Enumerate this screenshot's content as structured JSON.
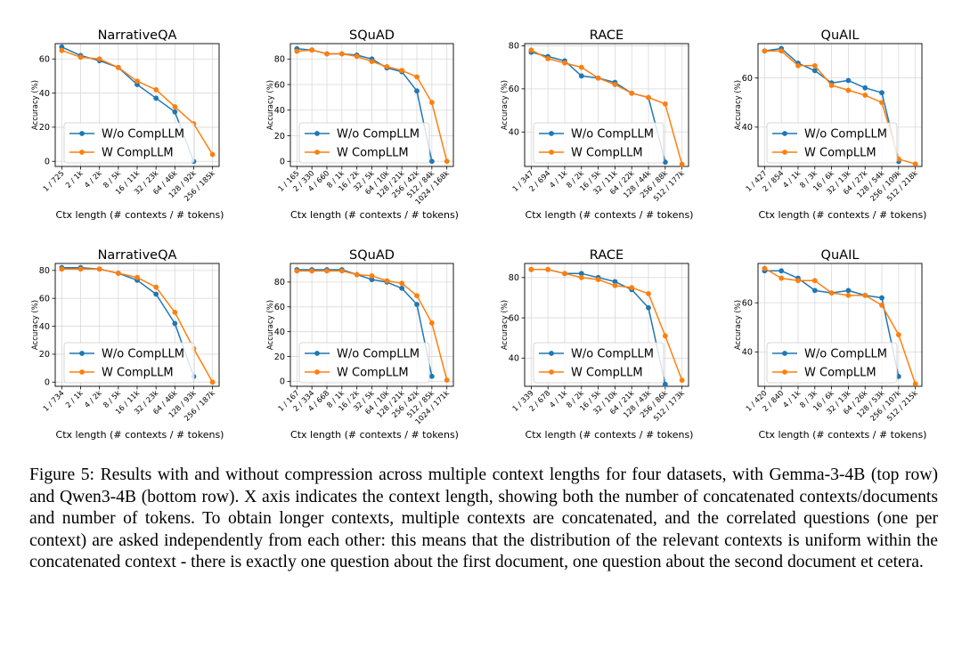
{
  "colors": {
    "series_a": "#1f77b4",
    "series_b": "#ff7f0e",
    "grid": "#d9d9d9",
    "axis": "#000000"
  },
  "legend_labels": [
    "W/o CompLLM",
    "W CompLLM"
  ],
  "caption": {
    "label": "Figure 5:",
    "text": "Results with and without compression across multiple context lengths for four datasets, with Gemma-3-4B (top row) and Qwen3-4B (bottom row). X axis indicates the context length, showing both the number of concatenated contexts/documents and number of tokens. To obtain longer contexts, multiple contexts are concatenated, and the correlated questions (one per context) are asked independently from each other: this means that the distribution of the relevant contexts is uniform within the concatenated context - there is exactly one question about the first document, one question about the second document et cetera."
  },
  "chart_data": [
    {
      "type": "line",
      "title": "NarrativeQA",
      "model": "Gemma-3-4B",
      "xlabel": "Ctx length (# contexts / # tokens)",
      "ylabel": "Accuracy (%)",
      "categories": [
        "1 / 725",
        "2 / 1k",
        "4 / 2k",
        "8 / 5k",
        "16 / 11k",
        "32 / 23k",
        "64 / 46k",
        "128 / 92k",
        "256 / 185k"
      ],
      "ylim": [
        -3,
        69
      ],
      "yticks": [
        0,
        20,
        40,
        60
      ],
      "series": [
        {
          "name": "W/o CompLLM",
          "values": [
            67,
            62,
            59,
            55,
            45,
            37,
            29,
            0,
            null
          ]
        },
        {
          "name": "W CompLLM",
          "values": [
            65,
            61,
            60,
            55,
            47,
            42,
            32,
            22,
            4
          ]
        }
      ]
    },
    {
      "type": "line",
      "title": "SQuAD",
      "model": "Gemma-3-4B",
      "xlabel": "Ctx length (# contexts / # tokens)",
      "ylabel": "Accuracy (%)",
      "categories": [
        "1 / 165",
        "2 / 330",
        "4 / 660",
        "8 / 1k",
        "16 / 2k",
        "32 / 5k",
        "64 / 10k",
        "128 / 21k",
        "256 / 42k",
        "512 / 84k",
        "1024 / 168k"
      ],
      "ylim": [
        -4,
        92
      ],
      "yticks": [
        0,
        20,
        40,
        60,
        80
      ],
      "series": [
        {
          "name": "W/o CompLLM",
          "values": [
            88,
            87,
            84,
            84,
            83,
            80,
            73,
            70,
            55,
            0,
            null
          ]
        },
        {
          "name": "W CompLLM",
          "values": [
            86,
            87,
            84,
            84,
            82,
            78,
            74,
            71,
            66,
            46,
            0
          ]
        }
      ]
    },
    {
      "type": "line",
      "title": "RACE",
      "model": "Gemma-3-4B",
      "xlabel": "Ctx length (# contexts / # tokens)",
      "ylabel": "Accuracy (%)",
      "categories": [
        "1 / 347",
        "2 / 694",
        "4 / 1k",
        "8 / 2k",
        "16 / 5k",
        "32 / 11k",
        "64 / 22k",
        "128 / 44k",
        "256 / 88k",
        "512 / 177k"
      ],
      "ylim": [
        24,
        81
      ],
      "yticks": [
        40,
        60,
        80
      ],
      "series": [
        {
          "name": "W/o CompLLM",
          "values": [
            77,
            75,
            73,
            66,
            65,
            63,
            58,
            56,
            26,
            null
          ]
        },
        {
          "name": "W CompLLM",
          "values": [
            78,
            74,
            72,
            70,
            65,
            62,
            58,
            56,
            53,
            25
          ]
        }
      ]
    },
    {
      "type": "line",
      "title": "QuAIL",
      "model": "Gemma-3-4B",
      "xlabel": "Ctx length (# contexts / # tokens)",
      "ylabel": "Accuracy (%)",
      "categories": [
        "1 / 427",
        "2 / 854",
        "4 / 1k",
        "8 / 3k",
        "16 / 6k",
        "32 / 13k",
        "64 / 27k",
        "128 / 54k",
        "256 / 109k",
        "512 / 218k"
      ],
      "ylim": [
        24,
        74
      ],
      "yticks": [
        40,
        60
      ],
      "series": [
        {
          "name": "W/o CompLLM",
          "values": [
            71,
            72,
            66,
            63,
            58,
            59,
            56,
            54,
            26,
            null
          ]
        },
        {
          "name": "W CompLLM",
          "values": [
            71,
            71,
            65,
            65,
            57,
            55,
            53,
            50,
            27,
            25
          ]
        }
      ]
    },
    {
      "type": "line",
      "title": "NarrativeQA",
      "model": "Qwen3-4B",
      "xlabel": "Ctx length (# contexts / # tokens)",
      "ylabel": "Accuracy (%)",
      "categories": [
        "1 / 734",
        "2 / 1k",
        "4 / 2k",
        "8 / 5k",
        "16 / 11k",
        "32 / 23k",
        "64 / 46k",
        "128 / 93k",
        "256 / 187k"
      ],
      "ylim": [
        -3,
        85
      ],
      "yticks": [
        0,
        20,
        40,
        60,
        80
      ],
      "series": [
        {
          "name": "W/o CompLLM",
          "values": [
            82,
            82,
            81,
            78,
            73,
            63,
            42,
            4,
            null
          ]
        },
        {
          "name": "W CompLLM",
          "values": [
            81,
            81,
            81,
            78,
            75,
            68,
            50,
            24,
            0
          ]
        }
      ]
    },
    {
      "type": "line",
      "title": "SQuAD",
      "model": "Qwen3-4B",
      "xlabel": "Ctx length (# contexts / # tokens)",
      "ylabel": "Accuracy (%)",
      "categories": [
        "1 / 167",
        "2 / 334",
        "4 / 668",
        "8 / 1k",
        "16 / 2k",
        "32 / 5k",
        "64 / 10k",
        "128 / 21k",
        "256 / 42k",
        "512 / 85k",
        "1024 / 171k"
      ],
      "ylim": [
        -4,
        95
      ],
      "yticks": [
        0,
        20,
        40,
        60,
        80
      ],
      "series": [
        {
          "name": "W/o CompLLM",
          "values": [
            90,
            90,
            90,
            90,
            86,
            82,
            80,
            75,
            62,
            4,
            null
          ]
        },
        {
          "name": "W CompLLM",
          "values": [
            89,
            89,
            89,
            89,
            86,
            85,
            81,
            79,
            69,
            47,
            1
          ]
        }
      ]
    },
    {
      "type": "line",
      "title": "RACE",
      "model": "Qwen3-4B",
      "xlabel": "Ctx length (# contexts / # tokens)",
      "ylabel": "Accuracy (%)",
      "categories": [
        "1 / 339",
        "2 / 678",
        "4 / 1k",
        "8 / 2k",
        "16 / 5k",
        "32 / 10k",
        "64 / 21k",
        "128 / 43k",
        "256 / 86k",
        "512 / 173k"
      ],
      "ylim": [
        26,
        87
      ],
      "yticks": [
        40,
        60,
        80
      ],
      "series": [
        {
          "name": "W/o CompLLM",
          "values": [
            84,
            84,
            82,
            82,
            80,
            78,
            74,
            65,
            27,
            null
          ]
        },
        {
          "name": "W CompLLM",
          "values": [
            84,
            84,
            82,
            80,
            79,
            76,
            75,
            72,
            51,
            29
          ]
        }
      ]
    },
    {
      "type": "line",
      "title": "QuAIL",
      "model": "Qwen3-4B",
      "xlabel": "Ctx length (# contexts / # tokens)",
      "ylabel": "Accuracy (%)",
      "categories": [
        "1 / 420",
        "2 / 840",
        "4 / 1k",
        "8 / 3k",
        "16 / 6k",
        "32 / 13k",
        "64 / 26k",
        "128 / 53k",
        "256 / 107k",
        "512 / 215k"
      ],
      "ylim": [
        26,
        76
      ],
      "yticks": [
        40,
        60
      ],
      "series": [
        {
          "name": "W/o CompLLM",
          "values": [
            73,
            73,
            70,
            65,
            64,
            65,
            63,
            62,
            30,
            null
          ]
        },
        {
          "name": "W CompLLM",
          "values": [
            74,
            70,
            69,
            69,
            64,
            63,
            63,
            59,
            47,
            27
          ]
        }
      ]
    }
  ]
}
